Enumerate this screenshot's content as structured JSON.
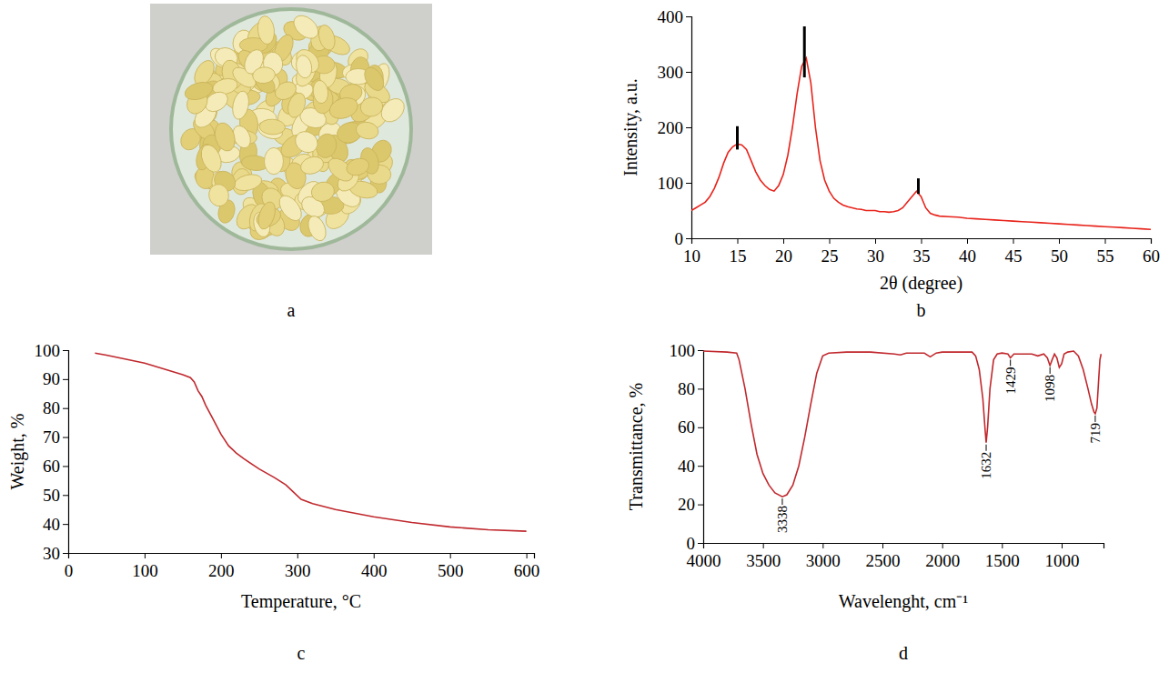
{
  "chart_data": [
    {
      "type": "image",
      "title": "a"
    },
    {
      "type": "line",
      "title": "b",
      "x_label": "2θ (degree)",
      "y_label": "Intensity, a.u.",
      "xlim": [
        10,
        60
      ],
      "xticks": [
        10,
        15,
        20,
        25,
        30,
        35,
        40,
        45,
        50,
        55,
        60
      ],
      "ylim": [
        0,
        400
      ],
      "yticks": [
        0,
        100,
        200,
        300,
        400
      ],
      "grid": false,
      "x": [
        10,
        10.5,
        11,
        11.5,
        12,
        12.5,
        13,
        13.5,
        14,
        14.5,
        15,
        15.5,
        16,
        16.5,
        17,
        17.5,
        18,
        18.5,
        19,
        19.5,
        20,
        20.5,
        21,
        21.5,
        22,
        22.5,
        23,
        23.5,
        24,
        24.5,
        25,
        25.5,
        26,
        26.5,
        27,
        27.5,
        28,
        28.5,
        29,
        29.5,
        30,
        30.5,
        31,
        31.5,
        32,
        32.5,
        33,
        33.5,
        34,
        34.5,
        35,
        35.5,
        36,
        36.5,
        37,
        38,
        39,
        40,
        41,
        42,
        43,
        44,
        45,
        46,
        47,
        48,
        49,
        50,
        51,
        52,
        53,
        54,
        55,
        56,
        57,
        58,
        59,
        60
      ],
      "series": [
        {
          "type": "line",
          "color": "#e8231b",
          "values": [
            50,
            55,
            60,
            65,
            75,
            90,
            110,
            135,
            155,
            165,
            170,
            168,
            160,
            140,
            120,
            105,
            95,
            88,
            85,
            95,
            115,
            150,
            200,
            260,
            310,
            325,
            280,
            200,
            140,
            105,
            85,
            72,
            65,
            60,
            57,
            55,
            53,
            52,
            50,
            50,
            50,
            48,
            48,
            47,
            48,
            50,
            55,
            65,
            75,
            85,
            75,
            55,
            45,
            42,
            40,
            39,
            38,
            36,
            35,
            34,
            33,
            32,
            31,
            30,
            29,
            28,
            27,
            26,
            25,
            24,
            23,
            22,
            21,
            20,
            19,
            18,
            17,
            16
          ]
        },
        {
          "type": "stem",
          "color": "#000000",
          "x": [
            15,
            22.3,
            34.7
          ],
          "values": [
            202,
            382,
            108
          ],
          "base": [
            160,
            290,
            80
          ]
        }
      ]
    },
    {
      "type": "line",
      "title": "c",
      "x_label": "Temperature, °C",
      "y_label": "Weight, %",
      "xlim": [
        0,
        610
      ],
      "xticks": [
        0,
        100,
        200,
        300,
        400,
        500,
        600
      ],
      "ylim": [
        30,
        100
      ],
      "yticks": [
        30,
        40,
        50,
        60,
        70,
        80,
        90,
        100
      ],
      "grid": false,
      "x": [
        35,
        50,
        100,
        150,
        160,
        165,
        170,
        175,
        180,
        190,
        200,
        210,
        220,
        230,
        250,
        270,
        285,
        295,
        305,
        320,
        350,
        400,
        450,
        500,
        550,
        600
      ],
      "series": [
        {
          "type": "line",
          "color": "#c0282d",
          "values": [
            99,
            98.3,
            95.5,
            91.5,
            90.5,
            89,
            86,
            84,
            81,
            76,
            71,
            67,
            64.5,
            62.5,
            59,
            56,
            53.5,
            51,
            48.5,
            47,
            45,
            42.5,
            40.5,
            39,
            38,
            37.5
          ]
        }
      ]
    },
    {
      "type": "line",
      "title": "d",
      "x_label": "Wavelenght, cm⁻¹",
      "y_label": "Transmittance, %",
      "xlim": [
        4000,
        650
      ],
      "xticks": [
        4000,
        3500,
        3000,
        2500,
        2000,
        1500,
        1000
      ],
      "ylim": [
        0,
        100
      ],
      "yticks": [
        0,
        20,
        40,
        60,
        80,
        100
      ],
      "grid": false,
      "x": [
        4000,
        3800,
        3720,
        3700,
        3650,
        3600,
        3550,
        3500,
        3450,
        3400,
        3338,
        3300,
        3250,
        3200,
        3150,
        3100,
        3050,
        3000,
        2950,
        2800,
        2600,
        2400,
        2350,
        2300,
        2150,
        2100,
        2050,
        2000,
        1850,
        1750,
        1720,
        1690,
        1660,
        1640,
        1632,
        1620,
        1600,
        1570,
        1540,
        1500,
        1450,
        1429,
        1400,
        1300,
        1250,
        1200,
        1150,
        1120,
        1098,
        1080,
        1060,
        1040,
        1020,
        1000,
        980,
        950,
        900,
        860,
        820,
        780,
        750,
        730,
        719,
        705,
        690,
        680,
        670
      ],
      "series": [
        {
          "type": "line",
          "color": "#c0282d",
          "values": [
            99.5,
            99,
            98.5,
            95,
            80,
            62,
            46,
            36,
            30,
            26,
            24,
            25,
            30,
            40,
            55,
            72,
            88,
            97,
            98.5,
            99,
            99,
            98,
            97.5,
            98.5,
            98.5,
            96.5,
            98.5,
            99,
            99,
            99,
            97,
            90,
            75,
            58,
            52,
            60,
            80,
            95,
            98,
            98.5,
            98,
            96,
            98,
            98,
            98,
            97,
            98,
            96,
            92,
            95,
            98,
            96,
            91,
            93,
            98,
            99,
            99.5,
            97,
            90,
            80,
            72,
            68,
            67,
            70,
            85,
            95,
            98
          ]
        }
      ],
      "annotations": [
        {
          "x": 3338,
          "y": 24,
          "text": "3338"
        },
        {
          "x": 1632,
          "y": 52,
          "text": "1632"
        },
        {
          "x": 1429,
          "y": 96,
          "text": "1429"
        },
        {
          "x": 1098,
          "y": 92,
          "text": "1098"
        },
        {
          "x": 719,
          "y": 67,
          "text": "719"
        }
      ]
    }
  ]
}
